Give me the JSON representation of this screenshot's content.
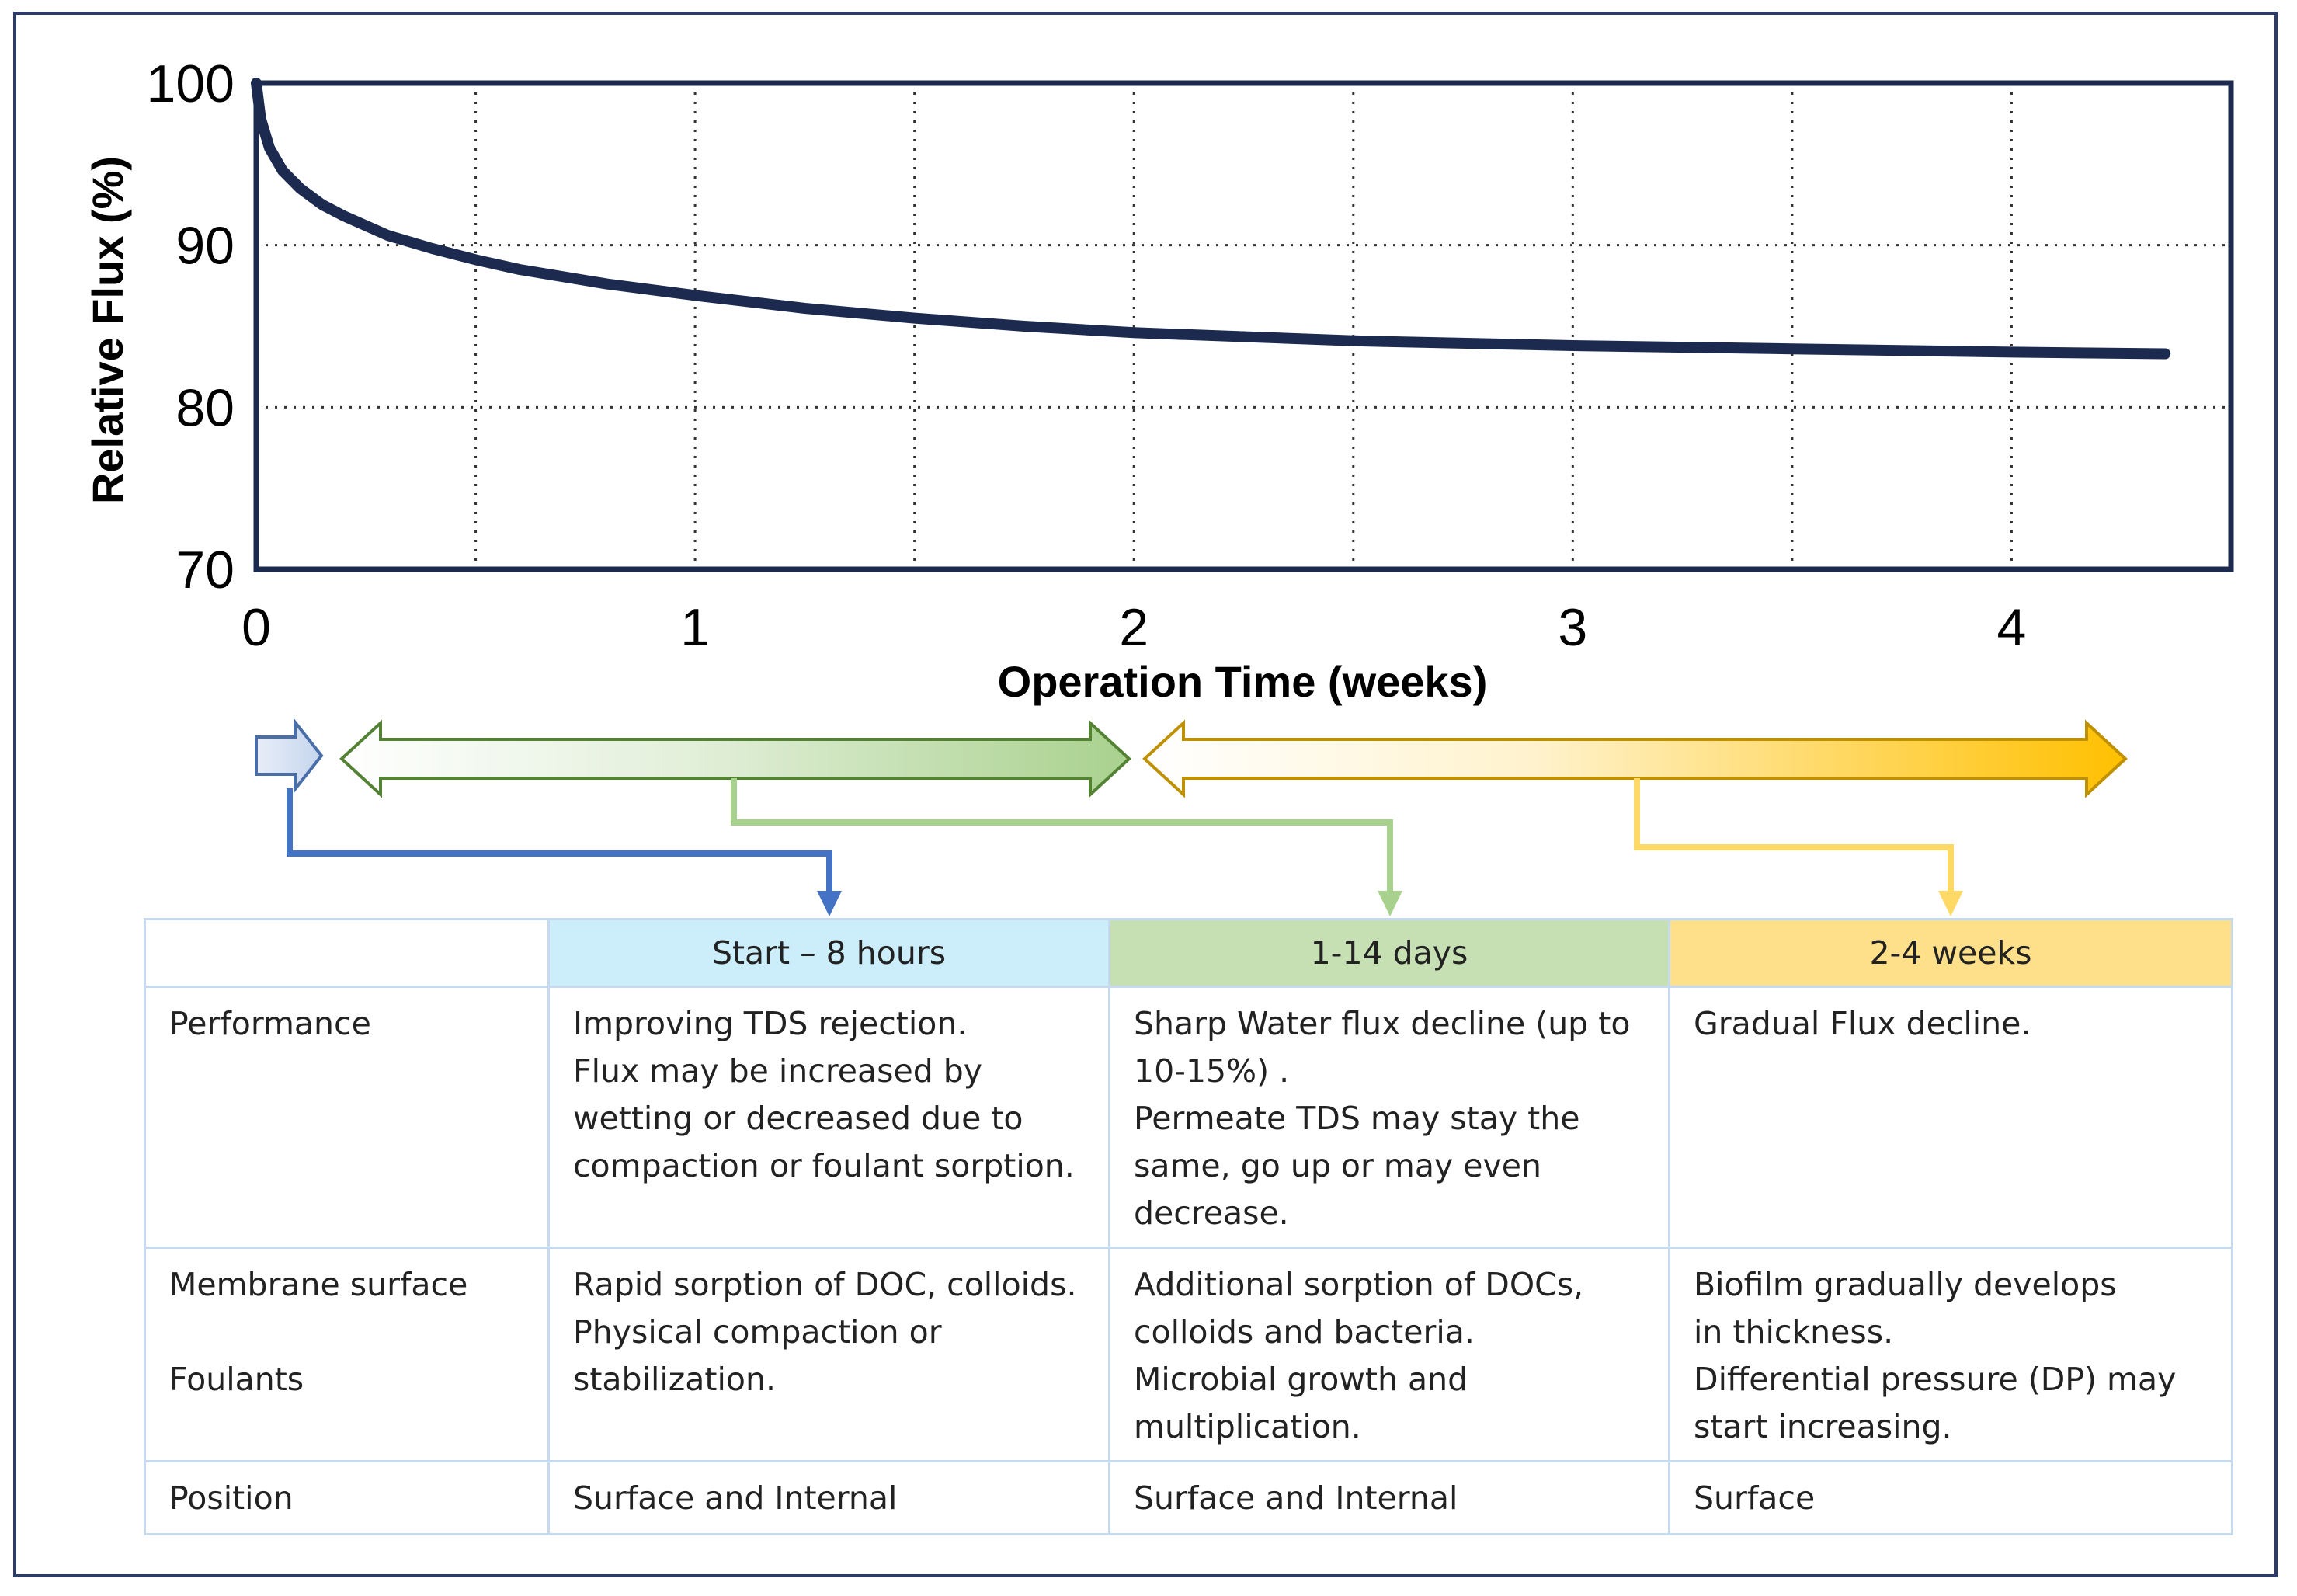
{
  "chart_data": {
    "type": "line",
    "xlabel": "Operation Time (weeks)",
    "ylabel": "Relative Flux (%)",
    "xlim": [
      0,
      4.5
    ],
    "ylim": [
      70,
      100
    ],
    "xticks": [
      0,
      1,
      2,
      3,
      4
    ],
    "yticks": [
      70,
      80,
      90,
      100
    ],
    "grid": "dotted",
    "series": [
      {
        "color": "#1b2a4e",
        "x": [
          0,
          0.01,
          0.03,
          0.06,
          0.1,
          0.15,
          0.2,
          0.3,
          0.4,
          0.5,
          0.6,
          0.8,
          1.0,
          1.25,
          1.5,
          1.75,
          2.0,
          2.5,
          3.0,
          3.5,
          4.0,
          4.35
        ],
        "y": [
          100,
          97.8,
          96.0,
          94.6,
          93.5,
          92.5,
          91.8,
          90.6,
          89.8,
          89.1,
          88.5,
          87.6,
          86.9,
          86.1,
          85.5,
          85.0,
          84.6,
          84.1,
          83.8,
          83.6,
          83.4,
          83.3
        ]
      }
    ]
  },
  "phases": [
    {
      "key": "s1",
      "color": "#4472c4",
      "fill": "#dce6f4"
    },
    {
      "key": "s2",
      "color": "#70ad47",
      "fill": "#c6e0b4"
    },
    {
      "key": "s3",
      "color": "#bf9000",
      "fill": "#ffc000"
    }
  ],
  "table": {
    "headers": [
      "",
      "Start – 8 hours",
      "1-14 days",
      "2-4 weeks"
    ],
    "rows": [
      {
        "label": [
          "Performance"
        ],
        "cells": [
          [
            "Improving TDS rejection.",
            "Flux may be increased by",
            "wetting or decreased due to",
            "compaction or foulant sorption."
          ],
          [
            "Sharp Water flux decline (up to",
            "10-15%) .",
            "Permeate TDS may stay the",
            "same, go up or may even",
            "decrease."
          ],
          [
            "Gradual Flux decline."
          ]
        ]
      },
      {
        "label": [
          "Membrane surface",
          "Foulants"
        ],
        "cells": [
          [
            "Rapid sorption of DOC, colloids.",
            "Physical compaction or",
            "stabilization."
          ],
          [
            "Additional sorption of DOCs,",
            "colloids and bacteria.",
            "Microbial growth and",
            "multiplication."
          ],
          [
            "Biofilm gradually develops",
            "in thickness.",
            "Differential pressure (DP) may",
            "start increasing."
          ]
        ]
      },
      {
        "label": [
          "Position"
        ],
        "cells": [
          [
            "Surface and Internal"
          ],
          [
            "Surface and Internal"
          ],
          [
            "Surface"
          ]
        ]
      }
    ]
  }
}
